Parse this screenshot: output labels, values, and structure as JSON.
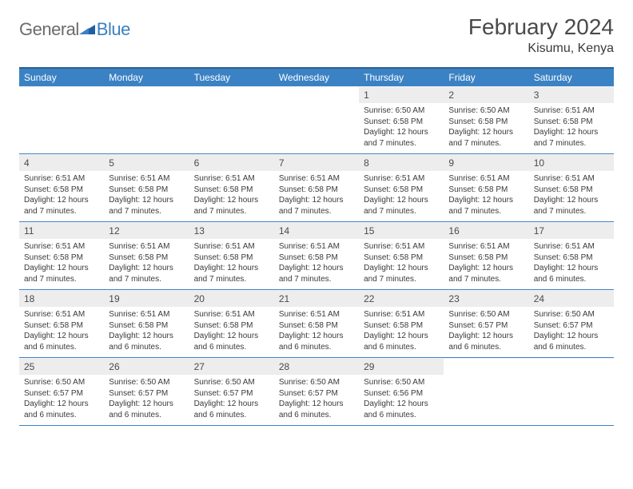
{
  "logo": {
    "general": "General",
    "blue": "Blue"
  },
  "title": "February 2024",
  "subtitle": "Kisumu, Kenya",
  "colors": {
    "header_bg": "#3b82c4",
    "header_border": "#2b5f91",
    "row_divider": "#3b82c4",
    "daynum_bg": "#ededed",
    "text_dark": "#4a4a4a",
    "text_body": "#3a3a3a",
    "logo_gray": "#6b6b6b",
    "logo_blue": "#3b7fbf"
  },
  "weekdays": [
    "Sunday",
    "Monday",
    "Tuesday",
    "Wednesday",
    "Thursday",
    "Friday",
    "Saturday"
  ],
  "weeks": [
    [
      {
        "n": "",
        "sr": "",
        "ss": "",
        "dl": ""
      },
      {
        "n": "",
        "sr": "",
        "ss": "",
        "dl": ""
      },
      {
        "n": "",
        "sr": "",
        "ss": "",
        "dl": ""
      },
      {
        "n": "",
        "sr": "",
        "ss": "",
        "dl": ""
      },
      {
        "n": "1",
        "sr": "Sunrise: 6:50 AM",
        "ss": "Sunset: 6:58 PM",
        "dl": "Daylight: 12 hours and 7 minutes."
      },
      {
        "n": "2",
        "sr": "Sunrise: 6:50 AM",
        "ss": "Sunset: 6:58 PM",
        "dl": "Daylight: 12 hours and 7 minutes."
      },
      {
        "n": "3",
        "sr": "Sunrise: 6:51 AM",
        "ss": "Sunset: 6:58 PM",
        "dl": "Daylight: 12 hours and 7 minutes."
      }
    ],
    [
      {
        "n": "4",
        "sr": "Sunrise: 6:51 AM",
        "ss": "Sunset: 6:58 PM",
        "dl": "Daylight: 12 hours and 7 minutes."
      },
      {
        "n": "5",
        "sr": "Sunrise: 6:51 AM",
        "ss": "Sunset: 6:58 PM",
        "dl": "Daylight: 12 hours and 7 minutes."
      },
      {
        "n": "6",
        "sr": "Sunrise: 6:51 AM",
        "ss": "Sunset: 6:58 PM",
        "dl": "Daylight: 12 hours and 7 minutes."
      },
      {
        "n": "7",
        "sr": "Sunrise: 6:51 AM",
        "ss": "Sunset: 6:58 PM",
        "dl": "Daylight: 12 hours and 7 minutes."
      },
      {
        "n": "8",
        "sr": "Sunrise: 6:51 AM",
        "ss": "Sunset: 6:58 PM",
        "dl": "Daylight: 12 hours and 7 minutes."
      },
      {
        "n": "9",
        "sr": "Sunrise: 6:51 AM",
        "ss": "Sunset: 6:58 PM",
        "dl": "Daylight: 12 hours and 7 minutes."
      },
      {
        "n": "10",
        "sr": "Sunrise: 6:51 AM",
        "ss": "Sunset: 6:58 PM",
        "dl": "Daylight: 12 hours and 7 minutes."
      }
    ],
    [
      {
        "n": "11",
        "sr": "Sunrise: 6:51 AM",
        "ss": "Sunset: 6:58 PM",
        "dl": "Daylight: 12 hours and 7 minutes."
      },
      {
        "n": "12",
        "sr": "Sunrise: 6:51 AM",
        "ss": "Sunset: 6:58 PM",
        "dl": "Daylight: 12 hours and 7 minutes."
      },
      {
        "n": "13",
        "sr": "Sunrise: 6:51 AM",
        "ss": "Sunset: 6:58 PM",
        "dl": "Daylight: 12 hours and 7 minutes."
      },
      {
        "n": "14",
        "sr": "Sunrise: 6:51 AM",
        "ss": "Sunset: 6:58 PM",
        "dl": "Daylight: 12 hours and 7 minutes."
      },
      {
        "n": "15",
        "sr": "Sunrise: 6:51 AM",
        "ss": "Sunset: 6:58 PM",
        "dl": "Daylight: 12 hours and 7 minutes."
      },
      {
        "n": "16",
        "sr": "Sunrise: 6:51 AM",
        "ss": "Sunset: 6:58 PM",
        "dl": "Daylight: 12 hours and 7 minutes."
      },
      {
        "n": "17",
        "sr": "Sunrise: 6:51 AM",
        "ss": "Sunset: 6:58 PM",
        "dl": "Daylight: 12 hours and 6 minutes."
      }
    ],
    [
      {
        "n": "18",
        "sr": "Sunrise: 6:51 AM",
        "ss": "Sunset: 6:58 PM",
        "dl": "Daylight: 12 hours and 6 minutes."
      },
      {
        "n": "19",
        "sr": "Sunrise: 6:51 AM",
        "ss": "Sunset: 6:58 PM",
        "dl": "Daylight: 12 hours and 6 minutes."
      },
      {
        "n": "20",
        "sr": "Sunrise: 6:51 AM",
        "ss": "Sunset: 6:58 PM",
        "dl": "Daylight: 12 hours and 6 minutes."
      },
      {
        "n": "21",
        "sr": "Sunrise: 6:51 AM",
        "ss": "Sunset: 6:58 PM",
        "dl": "Daylight: 12 hours and 6 minutes."
      },
      {
        "n": "22",
        "sr": "Sunrise: 6:51 AM",
        "ss": "Sunset: 6:58 PM",
        "dl": "Daylight: 12 hours and 6 minutes."
      },
      {
        "n": "23",
        "sr": "Sunrise: 6:50 AM",
        "ss": "Sunset: 6:57 PM",
        "dl": "Daylight: 12 hours and 6 minutes."
      },
      {
        "n": "24",
        "sr": "Sunrise: 6:50 AM",
        "ss": "Sunset: 6:57 PM",
        "dl": "Daylight: 12 hours and 6 minutes."
      }
    ],
    [
      {
        "n": "25",
        "sr": "Sunrise: 6:50 AM",
        "ss": "Sunset: 6:57 PM",
        "dl": "Daylight: 12 hours and 6 minutes."
      },
      {
        "n": "26",
        "sr": "Sunrise: 6:50 AM",
        "ss": "Sunset: 6:57 PM",
        "dl": "Daylight: 12 hours and 6 minutes."
      },
      {
        "n": "27",
        "sr": "Sunrise: 6:50 AM",
        "ss": "Sunset: 6:57 PM",
        "dl": "Daylight: 12 hours and 6 minutes."
      },
      {
        "n": "28",
        "sr": "Sunrise: 6:50 AM",
        "ss": "Sunset: 6:57 PM",
        "dl": "Daylight: 12 hours and 6 minutes."
      },
      {
        "n": "29",
        "sr": "Sunrise: 6:50 AM",
        "ss": "Sunset: 6:56 PM",
        "dl": "Daylight: 12 hours and 6 minutes."
      },
      {
        "n": "",
        "sr": "",
        "ss": "",
        "dl": ""
      },
      {
        "n": "",
        "sr": "",
        "ss": "",
        "dl": ""
      }
    ]
  ]
}
